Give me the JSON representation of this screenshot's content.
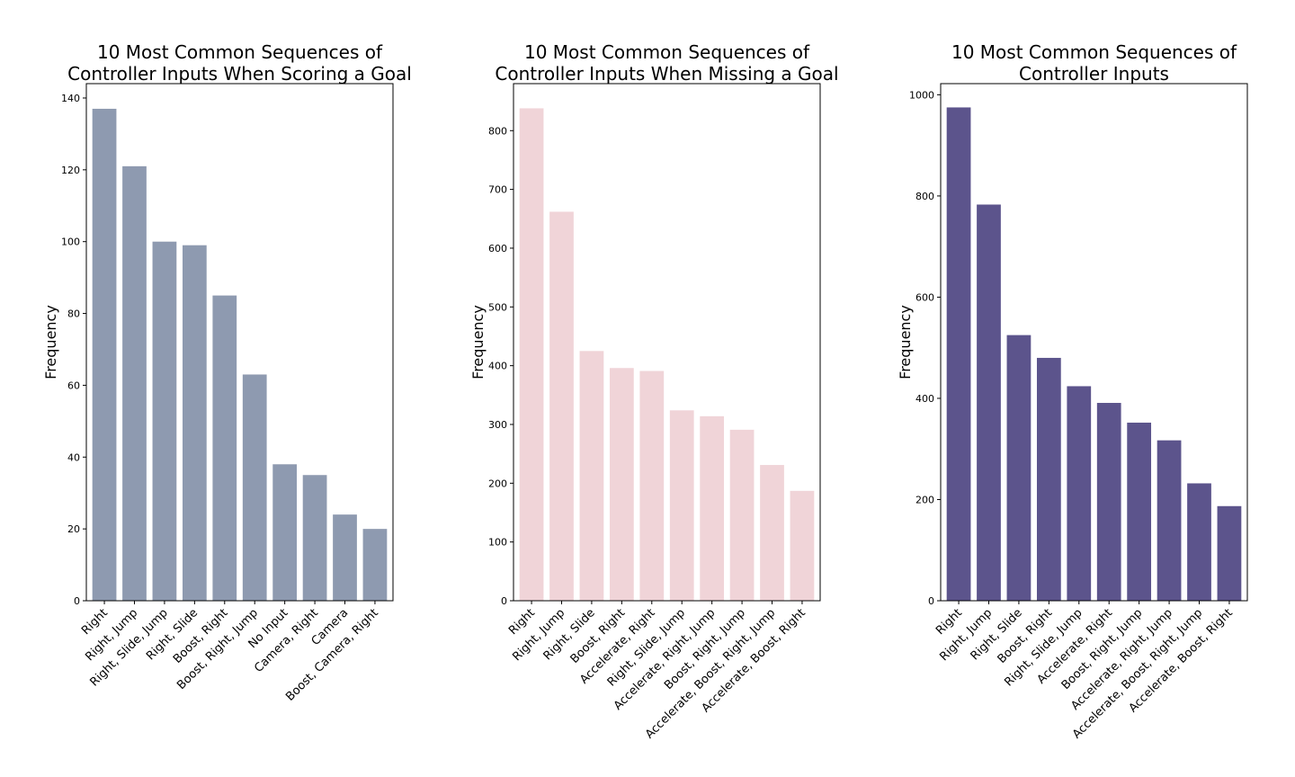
{
  "chart_data": [
    {
      "type": "bar",
      "title_lines": [
        "10 Most Common Sequences of",
        "Controller Inputs When Scoring a Goal"
      ],
      "xlabel": "",
      "ylabel": "Frequency",
      "ylim": [
        0,
        144
      ],
      "yticks": [
        0,
        20,
        40,
        60,
        80,
        100,
        120,
        140
      ],
      "color": "#8e9ab0",
      "categories": [
        "Right",
        "Right, Jump",
        "Right, Slide, Jump",
        "Right, Slide",
        "Boost, Right",
        "Boost, Right, Jump",
        "No Input",
        "Camera, Right",
        "Camera",
        "Boost, Camera, Right"
      ],
      "values": [
        137,
        121,
        100,
        99,
        85,
        63,
        38,
        35,
        24,
        20
      ],
      "grid": false,
      "legend": "none"
    },
    {
      "type": "bar",
      "title_lines": [
        "10 Most Common Sequences of",
        "Controller Inputs When Missing a Goal"
      ],
      "xlabel": "",
      "ylabel": "Frequency",
      "ylim": [
        0,
        880
      ],
      "yticks": [
        0,
        100,
        200,
        300,
        400,
        500,
        600,
        700,
        800
      ],
      "color": "#f0d4d8",
      "categories": [
        "Right",
        "Right, Jump",
        "Right, Slide",
        "Boost, Right",
        "Accelerate, Right",
        "Right, Slide, Jump",
        "Accelerate, Right, Jump",
        "Boost, Right, Jump",
        "Accelerate, Boost, Right, Jump",
        "Accelerate, Boost, Right"
      ],
      "values": [
        838,
        662,
        425,
        396,
        391,
        324,
        314,
        291,
        231,
        187
      ],
      "grid": false,
      "legend": "none"
    },
    {
      "type": "bar",
      "title_lines": [
        "10 Most Common Sequences of",
        "Controller Inputs"
      ],
      "xlabel": "",
      "ylabel": "Frequency",
      "ylim": [
        0,
        1022
      ],
      "yticks": [
        0,
        200,
        400,
        600,
        800,
        1000
      ],
      "color": "#5c548c",
      "categories": [
        "Right",
        "Right, Jump",
        "Right, Slide",
        "Boost, Right",
        "Right, Slide, Jump",
        "Accelerate, Right",
        "Boost, Right, Jump",
        "Accelerate, Right, Jump",
        "Accelerate, Boost, Right, Jump",
        "Accelerate, Boost, Right"
      ],
      "values": [
        975,
        783,
        525,
        480,
        424,
        391,
        352,
        317,
        232,
        187
      ],
      "grid": false,
      "legend": "none"
    }
  ]
}
